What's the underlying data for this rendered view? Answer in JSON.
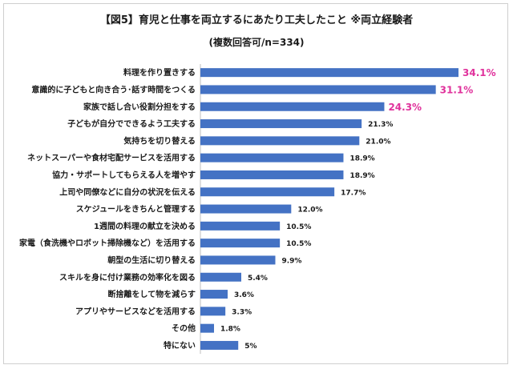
{
  "chart_data": {
    "type": "bar",
    "orientation": "horizontal",
    "title": "【図5】育児と仕事を両立するにあたり工夫したこと ※両立経験者",
    "subtitle": "(複数回答可/n=334)",
    "xlabel": "",
    "ylabel": "",
    "xlim": [
      0,
      34.1
    ],
    "categories": [
      "料理を作り置きする",
      "意識的に子どもと向き合う･話す時間をつくる",
      "家族で話し合い役割分担をする",
      "子どもが自分でできるよう工夫する",
      "気持ちを切り替える",
      "ネットスーパーや食材宅配サービスを活用する",
      "協力・サポートしてもらえる人を増やす",
      "上司や同僚などに自分の状況を伝える",
      "スケジュールをきちんと管理する",
      "1週間の料理の献立を決める",
      "家電（食洗機やロボット掃除機など）を活用する",
      "朝型の生活に切り替える",
      "スキルを身に付け業務の効率化を図る",
      "断捨離をして物を減らす",
      "アプリやサービスなどを活用する",
      "その他",
      "特にない"
    ],
    "values": [
      34.1,
      31.1,
      24.3,
      21.3,
      21.0,
      18.9,
      18.9,
      17.7,
      12.0,
      10.5,
      10.5,
      9.9,
      5.4,
      3.6,
      3.3,
      1.8,
      5
    ],
    "labels": [
      "34.1%",
      "31.1%",
      "24.3%",
      "21.3%",
      "21.0%",
      "18.9%",
      "18.9%",
      "17.7%",
      "12.0%",
      "10.5%",
      "10.5%",
      "9.9%",
      "5.4%",
      "3.6%",
      "3.3%",
      "1.8%",
      "5%"
    ],
    "highlight_top_n": 3,
    "bar_color": "#4472c4",
    "highlight_label_color": "#e0329c"
  }
}
